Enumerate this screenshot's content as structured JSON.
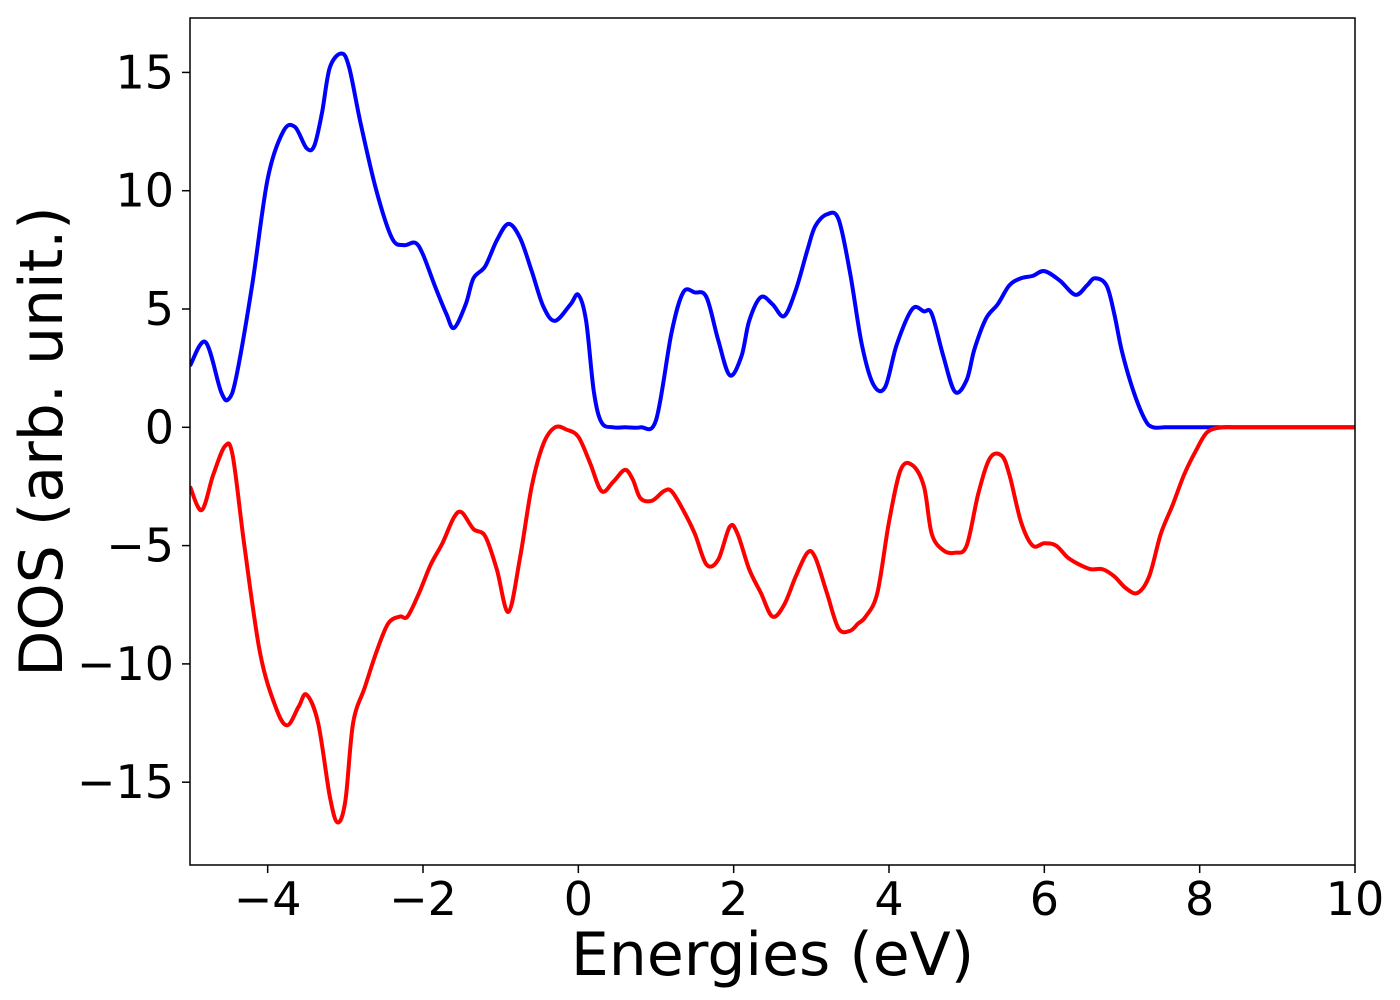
{
  "chart_data": {
    "type": "line",
    "title": "",
    "xlabel": "Energies (eV)",
    "ylabel": "DOS (arb. unit.)",
    "xlim": [
      -5,
      10
    ],
    "ylim": [
      -18.5,
      17.3
    ],
    "x_ticks": [
      -4,
      -2,
      0,
      2,
      4,
      6,
      8,
      10
    ],
    "y_ticks": [
      -15,
      -10,
      -5,
      0,
      5,
      10,
      15
    ],
    "x_tick_labels": [
      "−4",
      "−2",
      "0",
      "2",
      "4",
      "6",
      "8",
      "10"
    ],
    "y_tick_labels": [
      "−15",
      "−10",
      "−5",
      "0",
      "5",
      "10",
      "15"
    ],
    "grid": false,
    "series": [
      {
        "color": "#0000ff",
        "x": [
          -5.0,
          -4.8,
          -4.6,
          -4.5,
          -4.4,
          -4.2,
          -4.0,
          -3.8,
          -3.65,
          -3.5,
          -3.4,
          -3.3,
          -3.2,
          -3.05,
          -2.95,
          -2.8,
          -2.6,
          -2.4,
          -2.25,
          -2.1,
          -2.0,
          -1.85,
          -1.7,
          -1.6,
          -1.45,
          -1.35,
          -1.2,
          -1.05,
          -0.9,
          -0.75,
          -0.6,
          -0.45,
          -0.3,
          -0.1,
          0.0,
          0.1,
          0.2,
          0.3,
          0.45,
          0.6,
          0.8,
          1.0,
          1.2,
          1.35,
          1.5,
          1.65,
          1.8,
          1.95,
          2.1,
          2.2,
          2.35,
          2.5,
          2.65,
          2.8,
          2.95,
          3.05,
          3.2,
          3.35,
          3.5,
          3.65,
          3.8,
          3.95,
          4.1,
          4.3,
          4.45,
          4.55,
          4.7,
          4.85,
          5.0,
          5.1,
          5.25,
          5.4,
          5.55,
          5.7,
          5.85,
          6.0,
          6.2,
          6.4,
          6.55,
          6.65,
          6.8,
          6.9,
          7.0,
          7.15,
          7.3,
          7.4,
          7.55,
          7.7,
          7.85,
          8.0,
          8.15,
          8.3,
          8.5,
          9.0,
          10.0
        ],
        "y": [
          2.6,
          3.6,
          1.5,
          1.2,
          2.2,
          6.0,
          10.5,
          12.5,
          12.7,
          11.8,
          11.9,
          13.3,
          15.2,
          15.8,
          15.2,
          12.8,
          10.0,
          8.0,
          7.7,
          7.8,
          7.3,
          6.0,
          4.8,
          4.2,
          5.2,
          6.3,
          6.8,
          7.9,
          8.6,
          8.0,
          6.6,
          5.1,
          4.5,
          5.2,
          5.6,
          4.5,
          1.5,
          0.2,
          0.0,
          0.0,
          0.0,
          0.3,
          4.0,
          5.7,
          5.7,
          5.5,
          3.7,
          2.2,
          3.0,
          4.5,
          5.5,
          5.2,
          4.7,
          5.8,
          7.5,
          8.5,
          9.0,
          8.8,
          6.5,
          3.5,
          1.8,
          1.7,
          3.5,
          5.0,
          4.9,
          4.8,
          3.0,
          1.5,
          2.0,
          3.3,
          4.6,
          5.2,
          6.0,
          6.3,
          6.4,
          6.6,
          6.2,
          5.6,
          6.0,
          6.3,
          6.0,
          4.8,
          3.2,
          1.5,
          0.3,
          0.0,
          0.0,
          0.0,
          0.0,
          0.0,
          0.0,
          0.0,
          0.0,
          0.0,
          0.0
        ]
      },
      {
        "color": "#ff0000",
        "x": [
          -5.0,
          -4.85,
          -4.7,
          -4.55,
          -4.45,
          -4.3,
          -4.1,
          -3.9,
          -3.75,
          -3.6,
          -3.5,
          -3.35,
          -3.2,
          -3.1,
          -3.0,
          -2.9,
          -2.75,
          -2.6,
          -2.45,
          -2.3,
          -2.2,
          -2.05,
          -1.9,
          -1.75,
          -1.6,
          -1.5,
          -1.35,
          -1.2,
          -1.05,
          -0.9,
          -0.75,
          -0.6,
          -0.45,
          -0.3,
          -0.15,
          0.0,
          0.15,
          0.3,
          0.45,
          0.6,
          0.7,
          0.8,
          0.95,
          1.1,
          1.2,
          1.35,
          1.5,
          1.65,
          1.8,
          1.95,
          2.05,
          2.2,
          2.35,
          2.5,
          2.65,
          2.8,
          2.95,
          3.05,
          3.2,
          3.35,
          3.5,
          3.6,
          3.7,
          3.85,
          4.0,
          4.15,
          4.3,
          4.45,
          4.55,
          4.7,
          4.85,
          5.0,
          5.15,
          5.3,
          5.45,
          5.55,
          5.7,
          5.85,
          6.0,
          6.15,
          6.3,
          6.45,
          6.6,
          6.75,
          6.9,
          7.05,
          7.2,
          7.35,
          7.5,
          7.65,
          7.8,
          7.95,
          8.1,
          8.3,
          8.5,
          9.0,
          10.0
        ],
        "y": [
          -2.5,
          -3.5,
          -2.0,
          -0.8,
          -1.2,
          -5.0,
          -9.5,
          -11.8,
          -12.6,
          -11.8,
          -11.3,
          -12.5,
          -15.6,
          -16.7,
          -15.8,
          -12.5,
          -11.0,
          -9.5,
          -8.3,
          -8.0,
          -8.0,
          -7.0,
          -5.8,
          -4.9,
          -3.8,
          -3.6,
          -4.3,
          -4.6,
          -6.0,
          -7.8,
          -5.5,
          -2.5,
          -0.7,
          0.0,
          -0.1,
          -0.4,
          -1.5,
          -2.7,
          -2.3,
          -1.8,
          -2.2,
          -3.0,
          -3.1,
          -2.7,
          -2.7,
          -3.5,
          -4.5,
          -5.8,
          -5.6,
          -4.2,
          -4.5,
          -6.0,
          -7.0,
          -8.0,
          -7.5,
          -6.3,
          -5.3,
          -5.5,
          -7.0,
          -8.5,
          -8.6,
          -8.3,
          -8.0,
          -7.0,
          -4.0,
          -1.8,
          -1.6,
          -2.5,
          -4.5,
          -5.2,
          -5.3,
          -5.0,
          -2.8,
          -1.3,
          -1.2,
          -2.0,
          -4.0,
          -5.0,
          -4.9,
          -5.0,
          -5.5,
          -5.8,
          -6.0,
          -6.0,
          -6.3,
          -6.8,
          -7.0,
          -6.3,
          -4.5,
          -3.3,
          -2.0,
          -1.0,
          -0.2,
          0.0,
          0.0,
          0.0,
          0.0
        ]
      }
    ]
  }
}
